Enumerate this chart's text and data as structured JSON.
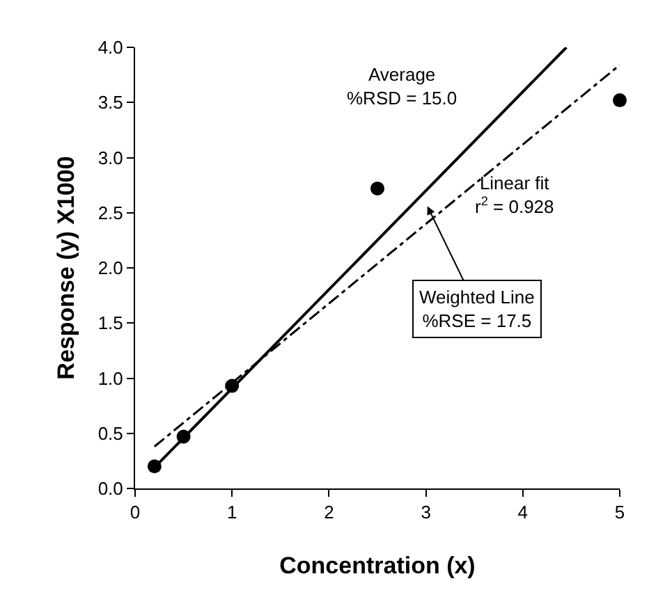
{
  "chart_data": {
    "type": "scatter",
    "xlabel": "Concentration (x)",
    "ylabel": "Response (y) X1000",
    "xlim": [
      0,
      5
    ],
    "xticks": [
      0,
      1,
      2,
      3,
      4,
      5
    ],
    "ylim": [
      0,
      4
    ],
    "yticks": [
      {
        "value": 0,
        "label": "0.0"
      },
      {
        "value": 0.5,
        "label": "0.5"
      },
      {
        "value": 1,
        "label": "1.0"
      },
      {
        "value": 1.5,
        "label": "1.5"
      },
      {
        "value": 2,
        "label": "2.0"
      },
      {
        "value": 2.5,
        "label": "2.5"
      },
      {
        "value": 3,
        "label": "3.0"
      },
      {
        "value": 3.5,
        "label": "3.5"
      },
      {
        "value": 4,
        "label": "4.0"
      }
    ],
    "grid": false,
    "marker": "circle",
    "series": [
      {
        "color": "#000000",
        "x": [
          0.2,
          0.5,
          1,
          2.5,
          5
        ],
        "values": [
          0.2,
          0.47,
          0.93,
          2.72,
          3.52
        ]
      },
      {
        "type": "line",
        "color": "#000000",
        "line_style": "solid",
        "marker": "none",
        "x": [
          0.2,
          4.45
        ],
        "values": [
          0.19,
          4.0
        ]
      },
      {
        "type": "line",
        "color": "#000000",
        "line_style": "dashed",
        "marker": "none",
        "x": [
          0.2,
          5
        ],
        "values": [
          0.38,
          3.84
        ]
      }
    ],
    "annotations": [
      "Average\n%RSD = 15.0",
      "Linear fit\nr$^{2}$ = 0.928",
      "Weighted Line\n%RSE = 17.5"
    ]
  }
}
